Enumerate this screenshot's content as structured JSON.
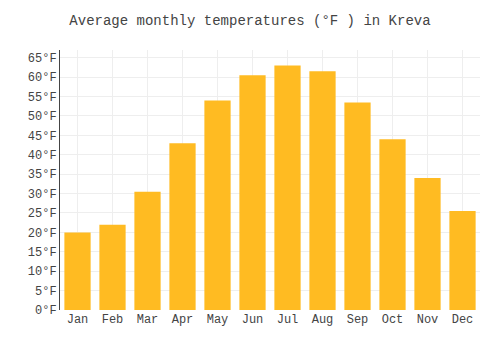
{
  "chart_data": {
    "type": "bar",
    "title": "Average monthly temperatures (°F ) in Kreva",
    "categories": [
      "Jan",
      "Feb",
      "Mar",
      "Apr",
      "May",
      "Jun",
      "Jul",
      "Aug",
      "Sep",
      "Oct",
      "Nov",
      "Dec"
    ],
    "values": [
      20,
      22,
      30.5,
      43,
      54,
      60.5,
      63,
      61.5,
      53.5,
      44,
      34,
      25.5
    ],
    "color": "#FFBB22",
    "ylim": [
      0,
      67
    ],
    "yticks": [
      {
        "value": 0,
        "label": "0°F"
      },
      {
        "value": 5,
        "label": "5°F"
      },
      {
        "value": 10,
        "label": "10°F"
      },
      {
        "value": 15,
        "label": "15°F"
      },
      {
        "value": 20,
        "label": "20°F"
      },
      {
        "value": 25,
        "label": "25°F"
      },
      {
        "value": 30,
        "label": "30°F"
      },
      {
        "value": 35,
        "label": "35°F"
      },
      {
        "value": 40,
        "label": "40°F"
      },
      {
        "value": 45,
        "label": "45°F"
      },
      {
        "value": 50,
        "label": "50°F"
      },
      {
        "value": 55,
        "label": "55°F"
      },
      {
        "value": 60,
        "label": "60°F"
      },
      {
        "value": 65,
        "label": "65°F"
      }
    ],
    "grid": true
  }
}
